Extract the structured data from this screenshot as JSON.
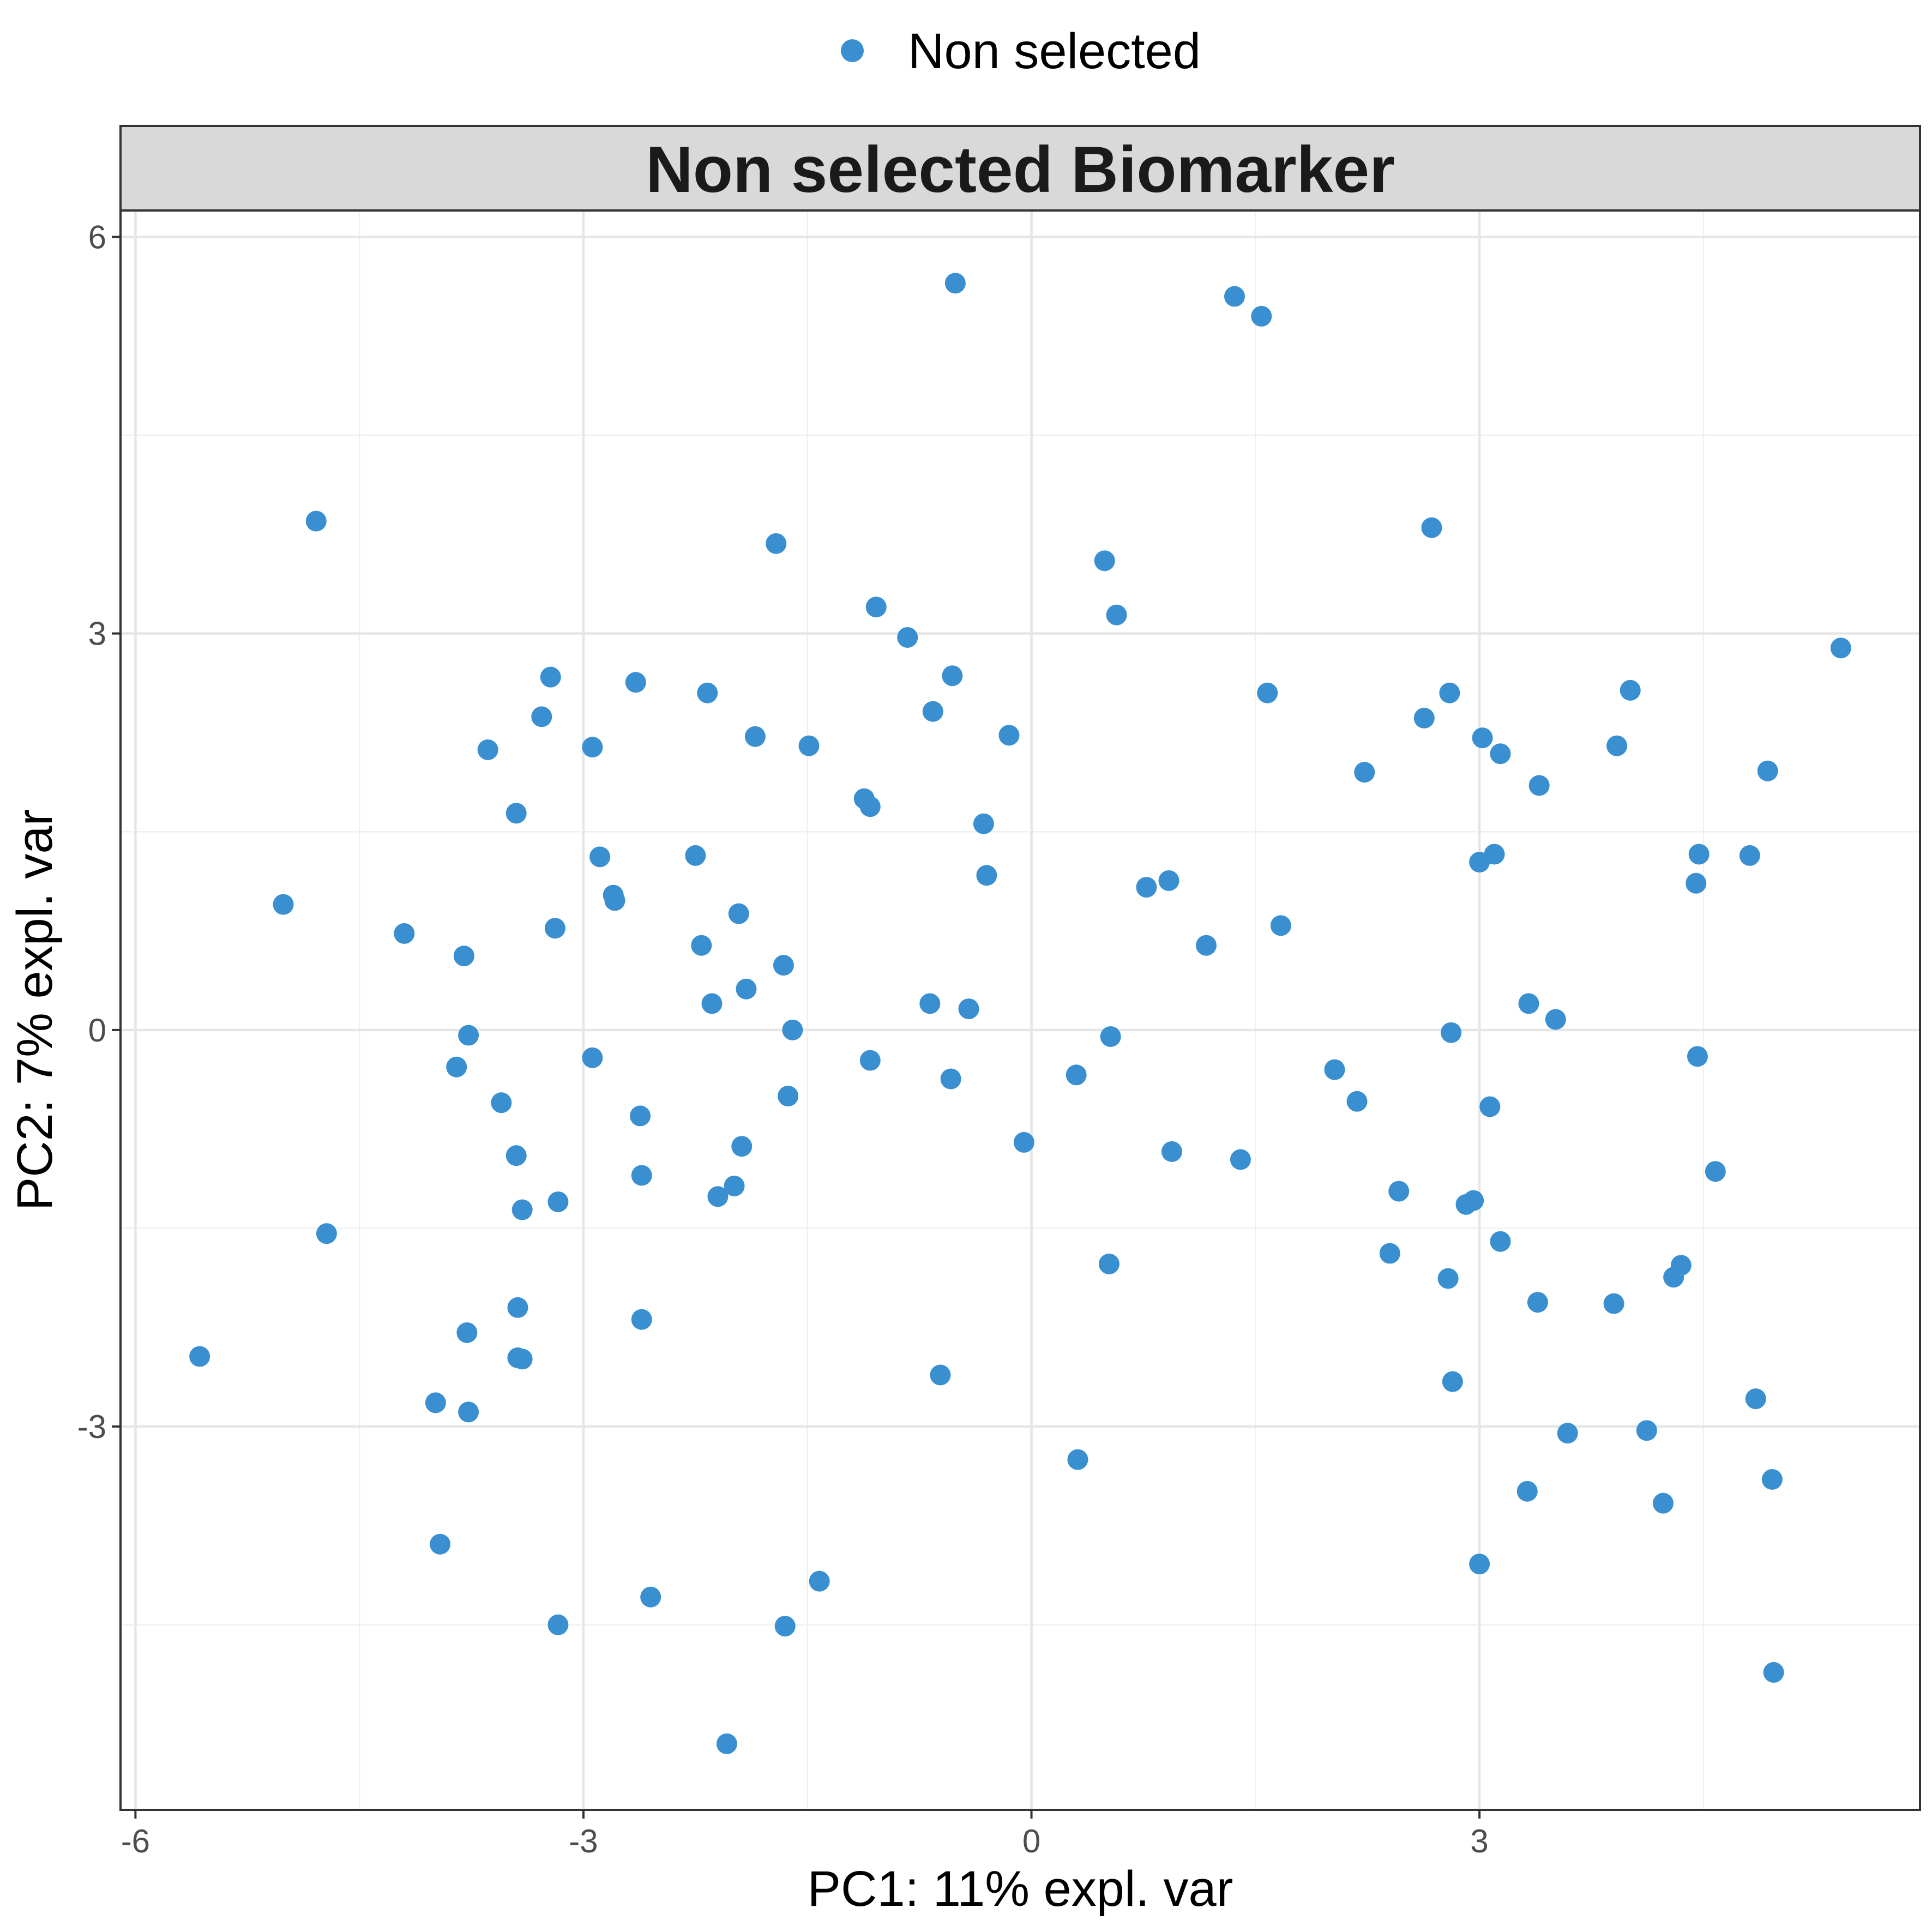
{
  "chart_data": {
    "type": "scatter",
    "facet_title": "Non selected Biomarker",
    "xlabel": "PC1: 11% expl. var",
    "ylabel": "PC2: 7% expl. var",
    "xlim": [
      -6.1,
      5.95
    ],
    "ylim": [
      -5.9,
      6.2
    ],
    "xticks": [
      -6,
      -3,
      0,
      3
    ],
    "yticks": [
      -3,
      0,
      3,
      6
    ],
    "xtick_labels": [
      "-6",
      "-3",
      "0",
      "3"
    ],
    "ytick_labels": [
      "-3",
      "0",
      "3",
      "6"
    ],
    "grid": true,
    "legend": {
      "position": "top",
      "entries": [
        "Non selected"
      ]
    },
    "colors": {
      "point": "#3A8FD1",
      "strip_fill": "#D9D9D9",
      "panel_border": "#333333"
    },
    "series": [
      {
        "name": "Non selected",
        "points": [
          [
            -0.51,
            5.65
          ],
          [
            1.36,
            5.55
          ],
          [
            1.54,
            5.4
          ],
          [
            -4.79,
            3.85
          ],
          [
            -1.71,
            3.68
          ],
          [
            0.49,
            3.55
          ],
          [
            2.68,
            3.8
          ],
          [
            -1.04,
            3.2
          ],
          [
            0.57,
            3.14
          ],
          [
            -0.83,
            2.97
          ],
          [
            5.42,
            2.89
          ],
          [
            -3.22,
            2.67
          ],
          [
            -0.53,
            2.68
          ],
          [
            -2.65,
            2.63
          ],
          [
            -2.17,
            2.55
          ],
          [
            1.58,
            2.55
          ],
          [
            2.8,
            2.55
          ],
          [
            4.01,
            2.57
          ],
          [
            -3.28,
            2.37
          ],
          [
            -0.66,
            2.41
          ],
          [
            2.63,
            2.36
          ],
          [
            -3.64,
            2.12
          ],
          [
            -2.94,
            2.14
          ],
          [
            -1.85,
            2.22
          ],
          [
            -1.49,
            2.15
          ],
          [
            -0.15,
            2.23
          ],
          [
            3.02,
            2.21
          ],
          [
            3.14,
            2.09
          ],
          [
            3.92,
            2.15
          ],
          [
            2.23,
            1.95
          ],
          [
            4.93,
            1.96
          ],
          [
            3.4,
            1.85
          ],
          [
            -1.12,
            1.75
          ],
          [
            -1.08,
            1.69
          ],
          [
            -3.45,
            1.64
          ],
          [
            -0.32,
            1.56
          ],
          [
            -2.89,
            1.31
          ],
          [
            -2.25,
            1.32
          ],
          [
            3.0,
            1.27
          ],
          [
            3.1,
            1.33
          ],
          [
            4.47,
            1.33
          ],
          [
            4.81,
            1.32
          ],
          [
            -0.3,
            1.17
          ],
          [
            0.77,
            1.08
          ],
          [
            0.92,
            1.13
          ],
          [
            4.45,
            1.11
          ],
          [
            -5.01,
            0.95
          ],
          [
            -2.8,
            1.02
          ],
          [
            -2.79,
            0.98
          ],
          [
            -1.96,
            0.88
          ],
          [
            -4.2,
            0.73
          ],
          [
            -3.19,
            0.77
          ],
          [
            1.67,
            0.79
          ],
          [
            -2.21,
            0.64
          ],
          [
            1.17,
            0.64
          ],
          [
            -3.8,
            0.56
          ],
          [
            -1.66,
            0.49
          ],
          [
            -1.91,
            0.31
          ],
          [
            -2.14,
            0.2
          ],
          [
            -0.68,
            0.2
          ],
          [
            -0.42,
            0.16
          ],
          [
            3.33,
            0.2
          ],
          [
            3.51,
            0.08
          ],
          [
            -3.77,
            -0.04
          ],
          [
            -1.6,
            0.0
          ],
          [
            0.53,
            -0.05
          ],
          [
            2.81,
            -0.02
          ],
          [
            -2.94,
            -0.21
          ],
          [
            -1.08,
            -0.23
          ],
          [
            -3.85,
            -0.28
          ],
          [
            2.03,
            -0.3
          ],
          [
            4.46,
            -0.2
          ],
          [
            0.3,
            -0.34
          ],
          [
            -0.54,
            -0.37
          ],
          [
            -3.55,
            -0.55
          ],
          [
            -1.63,
            -0.5
          ],
          [
            2.18,
            -0.54
          ],
          [
            3.07,
            -0.58
          ],
          [
            -2.62,
            -0.65
          ],
          [
            -1.94,
            -0.88
          ],
          [
            -0.05,
            -0.85
          ],
          [
            0.94,
            -0.92
          ],
          [
            -3.45,
            -0.95
          ],
          [
            1.4,
            -0.98
          ],
          [
            4.58,
            -1.07
          ],
          [
            -2.61,
            -1.1
          ],
          [
            -1.99,
            -1.18
          ],
          [
            -2.1,
            -1.26
          ],
          [
            2.46,
            -1.22
          ],
          [
            -3.17,
            -1.3
          ],
          [
            -3.41,
            -1.36
          ],
          [
            2.91,
            -1.32
          ],
          [
            2.96,
            -1.29
          ],
          [
            -4.72,
            -1.54
          ],
          [
            3.14,
            -1.6
          ],
          [
            2.4,
            -1.69
          ],
          [
            0.52,
            -1.77
          ],
          [
            4.35,
            -1.78
          ],
          [
            4.3,
            -1.87
          ],
          [
            2.79,
            -1.88
          ],
          [
            -3.44,
            -2.1
          ],
          [
            -2.61,
            -2.19
          ],
          [
            3.39,
            -2.06
          ],
          [
            3.9,
            -2.07
          ],
          [
            -3.78,
            -2.29
          ],
          [
            -5.57,
            -2.47
          ],
          [
            -3.44,
            -2.48
          ],
          [
            -3.41,
            -2.49
          ],
          [
            -0.61,
            -2.61
          ],
          [
            2.82,
            -2.66
          ],
          [
            -3.99,
            -2.82
          ],
          [
            -3.77,
            -2.89
          ],
          [
            4.85,
            -2.79
          ],
          [
            3.59,
            -3.05
          ],
          [
            4.12,
            -3.03
          ],
          [
            0.31,
            -3.25
          ],
          [
            4.96,
            -3.4
          ],
          [
            3.32,
            -3.49
          ],
          [
            4.23,
            -3.58
          ],
          [
            -3.96,
            -3.89
          ],
          [
            3.0,
            -4.04
          ],
          [
            -1.42,
            -4.17
          ],
          [
            -2.55,
            -4.29
          ],
          [
            -3.17,
            -4.5
          ],
          [
            -1.65,
            -4.51
          ],
          [
            4.97,
            -4.86
          ],
          [
            -2.04,
            -5.4
          ]
        ]
      }
    ]
  }
}
